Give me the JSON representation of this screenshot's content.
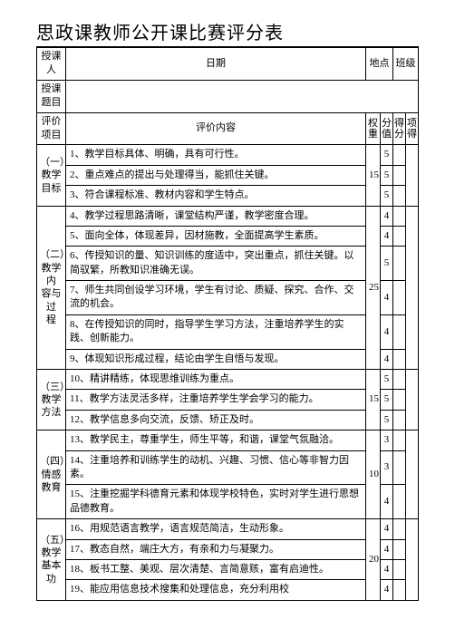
{
  "title": "思政课教师公开课比赛评分表",
  "header": {
    "teacher_label": "授课人",
    "date_label": "日期",
    "place_label": "地点",
    "class_label": "班级",
    "topic_label": "授课题目",
    "eval_item_label": "评价项目",
    "eval_content_label": "评价内容",
    "weight_label": "权重",
    "score_label": "分值",
    "get_label": "得分",
    "item_label": "项得"
  },
  "sections": [
    {
      "category": "（一）\n教学\n目标",
      "weight": "15",
      "rows": [
        {
          "content": "1、教学目标具体、明确，具有可行性。",
          "score": "5"
        },
        {
          "content": "2、重点难点的提出与处理得当，能抓住关键。",
          "score": "5"
        },
        {
          "content": "3、符合课程标准、教材内容和学生特点。",
          "score": "5"
        }
      ]
    },
    {
      "category": "（二）\n教学内\n容与过\n程",
      "weight": "25",
      "rows": [
        {
          "content": "4、教学过程思路清晰，课堂结构严谨，教学密度合理。",
          "score": "4"
        },
        {
          "content": "5、面向全体，体现差异，因材施教，全面提高学生素质。",
          "score": "4"
        },
        {
          "content": "6、传授知识的量、知识训练的度适中，突出重点，抓住关键。以简驭繁，所教知识准确无误。",
          "score": "5"
        },
        {
          "content": "7、师生共同创设学习环境，学生有讨论、质疑、探究、合作、交流的机会。",
          "score": "4"
        },
        {
          "content": "8、在传授知识的同时，指导学生学习方法，注重培养学生的实践、创新能力。",
          "score": "4"
        },
        {
          "content": "9、体现知识形成过程，结论由学生自悟与发现。",
          "score": "4"
        }
      ]
    },
    {
      "category": "（三）\n教学\n方法",
      "weight": "15",
      "rows": [
        {
          "content": "10、精讲精练，体现思维训练为重点。",
          "score": "5"
        },
        {
          "content": "11、教学方法灵活多样，注重培养学生学会学习的能力。",
          "score": "5"
        },
        {
          "content": "12、教学信息多向交流，反馈、矫正及时。",
          "score": "5"
        }
      ]
    },
    {
      "category": "（四）\n情感\n教育",
      "weight": "10",
      "rows": [
        {
          "content": "13、教学民主，尊重学生，师生平等，和谐，课堂气氛融洽。",
          "score": "3"
        },
        {
          "content": "14、注重培养和训练学生的动机、兴趣、习惯、信心等非智力因素。",
          "score": "3"
        },
        {
          "content": "15、注重挖掘学科德育元素和体现学校特色，实时对学生进行思想品德教育。",
          "score": "4"
        }
      ]
    },
    {
      "category": "（五）\n教学\n基本功",
      "weight": "20",
      "rows": [
        {
          "content": "16、用规范语言教学，语言规范简洁，生动形象。",
          "score": "4"
        },
        {
          "content": "17、教态自然，端庄大方，有亲和力与凝聚力。",
          "score": "4"
        },
        {
          "content": "18、板书工整、美观、层次清楚、言简意赅，富有启迪性。",
          "score": "4"
        },
        {
          "content": "19、能应用信息技术搜集和处理信息，充分利用校",
          "score": "4"
        }
      ]
    }
  ]
}
